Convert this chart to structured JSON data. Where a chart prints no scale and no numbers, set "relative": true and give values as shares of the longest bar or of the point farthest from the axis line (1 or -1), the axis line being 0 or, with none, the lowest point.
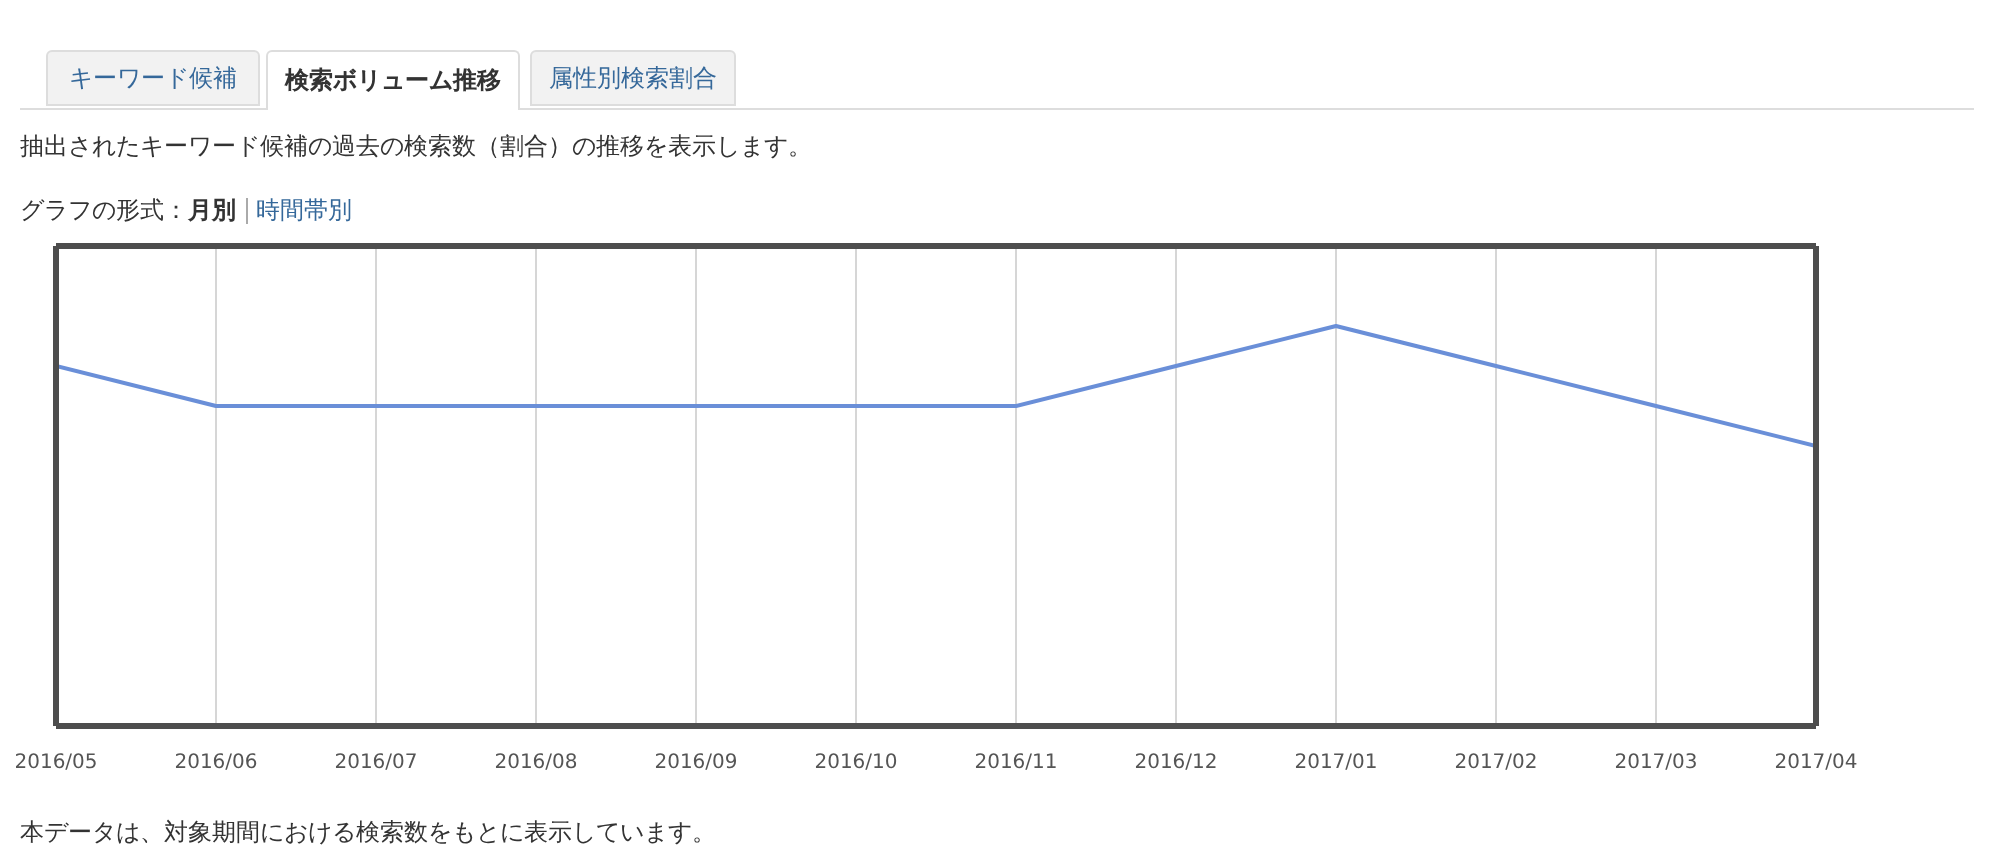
{
  "chart_data": {
    "type": "line",
    "subtitle": "抽出されたキーワード候補の過去の検索数（割合）の推移を表示します。",
    "categories": [
      "2016/05",
      "2016/06",
      "2016/07",
      "2016/08",
      "2016/09",
      "2016/10",
      "2016/11",
      "2016/12",
      "2017/01",
      "2017/02",
      "2017/03",
      "2017/04"
    ],
    "values": [
      0.9,
      0.8,
      0.8,
      0.8,
      0.8,
      0.8,
      0.8,
      0.9,
      1,
      0.9,
      0.8,
      0.7
    ],
    "color": "#6a8fd8",
    "relative": true,
    "grid": "x",
    "annotations": [
      "キーワード候補",
      "検索ボリューム推移",
      "属性別検索割合",
      "グラフの形式：",
      "月別",
      "時間帯別",
      "本データは、対象期間における検索数をもとに表示しています。"
    ]
  }
}
